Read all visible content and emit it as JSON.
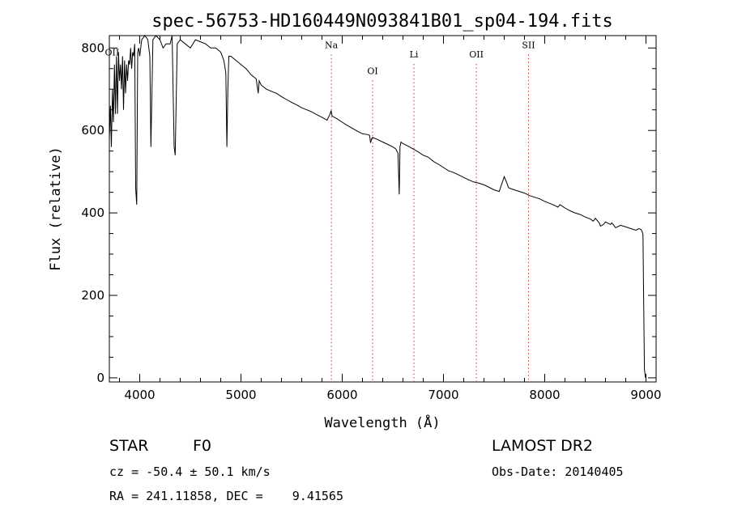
{
  "chart_data": {
    "type": "line",
    "title": "spec-56753-HD160449N093841B01_sp04-194.fits",
    "xlabel": "Wavelength (Å)",
    "ylabel": "Flux (relative)",
    "xlim": [
      3700,
      9100
    ],
    "ylim": [
      -10,
      830
    ],
    "xticks": [
      4000,
      5000,
      6000,
      7000,
      8000,
      9000
    ],
    "yticks": [
      0,
      200,
      400,
      600,
      800
    ],
    "grid": false,
    "series": [
      {
        "color": "#000000",
        "x": [
          3700,
          3710,
          3720,
          3730,
          3740,
          3750,
          3760,
          3770,
          3780,
          3790,
          3800,
          3810,
          3820,
          3830,
          3840,
          3850,
          3860,
          3870,
          3880,
          3890,
          3900,
          3910,
          3920,
          3930,
          3940,
          3950,
          3960,
          3970,
          3980,
          3990,
          4000,
          4020,
          4050,
          4080,
          4100,
          4110,
          4130,
          4160,
          4200,
          4230,
          4260,
          4300,
          4320,
          4340,
          4350,
          4370,
          4400,
          4450,
          4500,
          4550,
          4600,
          4650,
          4700,
          4750,
          4800,
          4830,
          4850,
          4861,
          4870,
          4880,
          4900,
          4950,
          5000,
          5050,
          5100,
          5150,
          5170,
          5180,
          5200,
          5250,
          5300,
          5350,
          5400,
          5450,
          5500,
          5550,
          5600,
          5650,
          5700,
          5750,
          5800,
          5850,
          5880,
          5890,
          5900,
          5950,
          6000,
          6050,
          6100,
          6150,
          6200,
          6250,
          6270,
          6280,
          6290,
          6300,
          6350,
          6400,
          6450,
          6500,
          6530,
          6550,
          6563,
          6570,
          6580,
          6600,
          6650,
          6700,
          6750,
          6800,
          6850,
          6900,
          6950,
          7000,
          7050,
          7100,
          7150,
          7200,
          7250,
          7300,
          7350,
          7400,
          7450,
          7500,
          7550,
          7600,
          7630,
          7640,
          7650,
          7700,
          7750,
          7800,
          7850,
          7900,
          7950,
          8000,
          8050,
          8100,
          8130,
          8150,
          8200,
          8250,
          8300,
          8350,
          8400,
          8450,
          8480,
          8500,
          8540,
          8550,
          8580,
          8600,
          8650,
          8662,
          8700,
          8750,
          8800,
          8850,
          8900,
          8930,
          8950,
          8960,
          8970,
          8975,
          8985,
          8995
        ],
        "y": [
          580,
          660,
          560,
          700,
          620,
          760,
          640,
          780,
          640,
          790,
          720,
          760,
          700,
          780,
          650,
          770,
          690,
          760,
          720,
          770,
          760,
          800,
          750,
          790,
          780,
          810,
          460,
          420,
          790,
          800,
          780,
          820,
          830,
          820,
          780,
          560,
          820,
          830,
          820,
          800,
          810,
          810,
          830,
          560,
          540,
          810,
          820,
          810,
          800,
          820,
          815,
          810,
          800,
          800,
          790,
          770,
          740,
          560,
          700,
          780,
          780,
          770,
          760,
          750,
          735,
          725,
          690,
          720,
          710,
          700,
          695,
          690,
          682,
          675,
          668,
          662,
          655,
          650,
          645,
          638,
          632,
          625,
          640,
          648,
          635,
          628,
          620,
          612,
          605,
          598,
          592,
          590,
          588,
          570,
          580,
          583,
          578,
          572,
          566,
          560,
          555,
          545,
          445,
          560,
          572,
          568,
          562,
          555,
          548,
          540,
          535,
          525,
          518,
          510,
          502,
          498,
          492,
          486,
          480,
          475,
          472,
          468,
          462,
          456,
          452,
          488,
          470,
          462,
          460,
          456,
          452,
          448,
          442,
          438,
          434,
          428,
          423,
          418,
          414,
          420,
          412,
          405,
          400,
          396,
          390,
          385,
          380,
          387,
          375,
          368,
          372,
          378,
          372,
          376,
          364,
          370,
          366,
          362,
          358,
          362,
          360,
          356,
          348,
          230,
          20,
          0
        ],
        "values_approx": true
      }
    ],
    "lines": [
      {
        "label": "OII",
        "x": 3727,
        "y": 782,
        "marker": false
      },
      {
        "label": "Na",
        "x": 5893,
        "y": 800,
        "marker": true
      },
      {
        "label": "OI",
        "x": 6300,
        "y": 737,
        "marker": true
      },
      {
        "label": "Li",
        "x": 6708,
        "y": 777,
        "marker": true
      },
      {
        "label": "OII",
        "x": 7325,
        "y": 777,
        "marker": true
      },
      {
        "label": "SII",
        "x": 7840,
        "y": 800,
        "marker": true
      }
    ]
  },
  "info": {
    "object_class": "STAR",
    "subclass": "F0",
    "survey": "LAMOST DR2",
    "cz": "cz = -50.4 ± 50.1 km/s",
    "obs_date": "Obs-Date: 20140405",
    "coords": "RA = 241.11858, DEC =    9.41565"
  }
}
